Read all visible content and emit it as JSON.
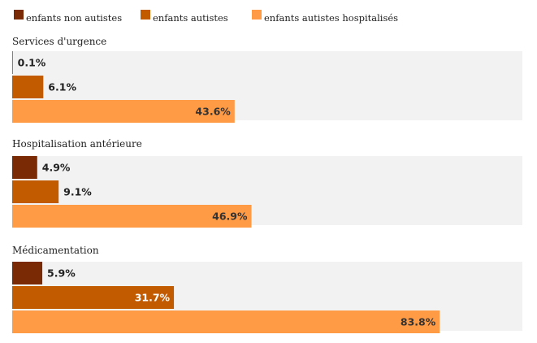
{
  "chart_data": {
    "type": "bar",
    "orientation": "horizontal",
    "xlim": [
      0,
      100
    ],
    "grid": false,
    "legend_position": "top-left",
    "series": [
      {
        "name": "enfants non autistes",
        "color": "#7a2a05",
        "values": [
          0.1,
          4.9,
          5.9
        ]
      },
      {
        "name": "enfants autistes",
        "color": "#c25a00",
        "values": [
          6.1,
          9.1,
          31.7
        ]
      },
      {
        "name": "enfants autistes hospitalisés",
        "color": "#ff9a45",
        "values": [
          43.6,
          46.9,
          83.8
        ]
      }
    ],
    "categories": [
      "Services d'urgence",
      "Hospitalisation antérieure",
      "Médicamentation"
    ],
    "labels": [
      [
        "0.1%",
        "6.1%",
        "43.6%"
      ],
      [
        "4.9%",
        "9.1%",
        "46.9%"
      ],
      [
        "5.9%",
        "31.7%",
        "83.8%"
      ]
    ],
    "panel_color": "#f2f2f2"
  }
}
